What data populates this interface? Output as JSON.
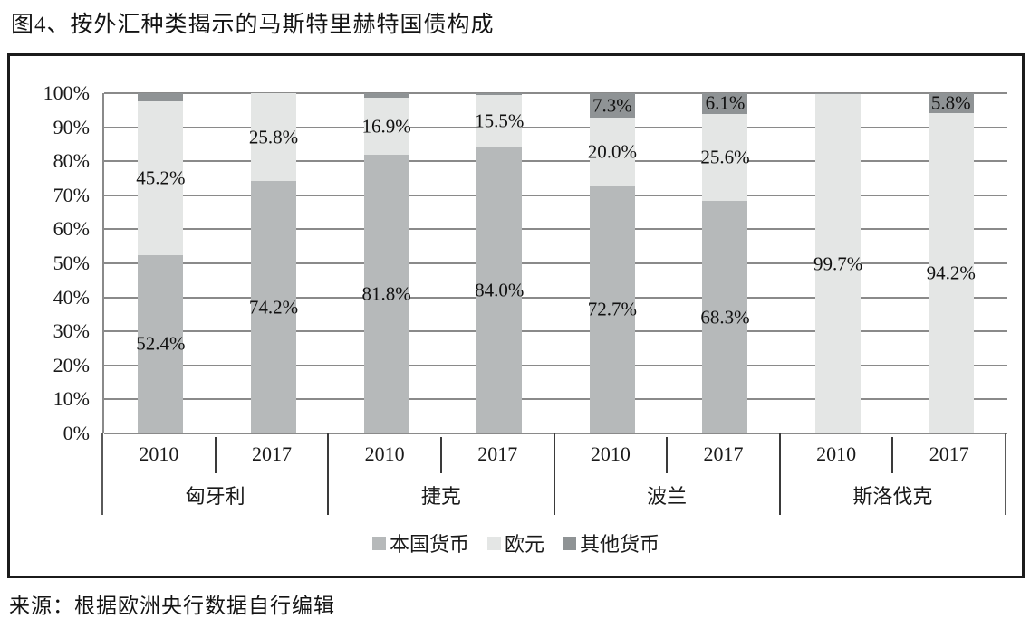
{
  "title": "图4、按外汇种类揭示的马斯特里赫特国债构成",
  "source": "来源：根据欧洲央行数据自行编辑",
  "colors": {
    "domestic": "#b6b9ba",
    "euro": "#e4e6e5",
    "other": "#8f9395",
    "gridline": "#8a8a8a",
    "frame_border": "#1b1b1b"
  },
  "chart_data": {
    "type": "bar",
    "subtype": "100%-stacked-column",
    "groups": [
      "匈牙利",
      "捷克",
      "波兰",
      "斯洛伐克"
    ],
    "years": [
      "2010",
      "2017"
    ],
    "bar_order_note": "8 bars: each group has 2010 then 2017",
    "series": [
      {
        "name": "本国货币",
        "color": "#b6b9ba",
        "values": [
          52.4,
          74.2,
          81.8,
          84.0,
          72.7,
          68.3,
          0,
          0
        ],
        "labels": [
          "52.4%",
          "74.2%",
          "81.8%",
          "84.0%",
          "72.7%",
          "68.3%",
          null,
          null
        ]
      },
      {
        "name": "欧元",
        "color": "#e4e6e5",
        "values": [
          45.2,
          25.8,
          16.9,
          15.5,
          20.0,
          25.6,
          99.7,
          94.2
        ],
        "labels": [
          "45.2%",
          "25.8%",
          "16.9%",
          "15.5%",
          "20.0%",
          "25.6%",
          "99.7%",
          "94.2%"
        ]
      },
      {
        "name": "其他货币",
        "color": "#8f9395",
        "values": [
          2.4,
          0,
          1.3,
          0.5,
          7.3,
          6.1,
          0.3,
          5.8
        ],
        "labels": [
          null,
          null,
          null,
          null,
          "7.3%",
          "6.1%",
          null,
          "5.8%"
        ]
      }
    ],
    "y_ticks": [
      "100%",
      "90%",
      "80%",
      "70%",
      "60%",
      "50%",
      "40%",
      "30%",
      "20%",
      "10%",
      "0%"
    ],
    "ylim": [
      0,
      100
    ],
    "grid": true,
    "legend_position": "bottom",
    "xlabel": "",
    "ylabel": ""
  }
}
